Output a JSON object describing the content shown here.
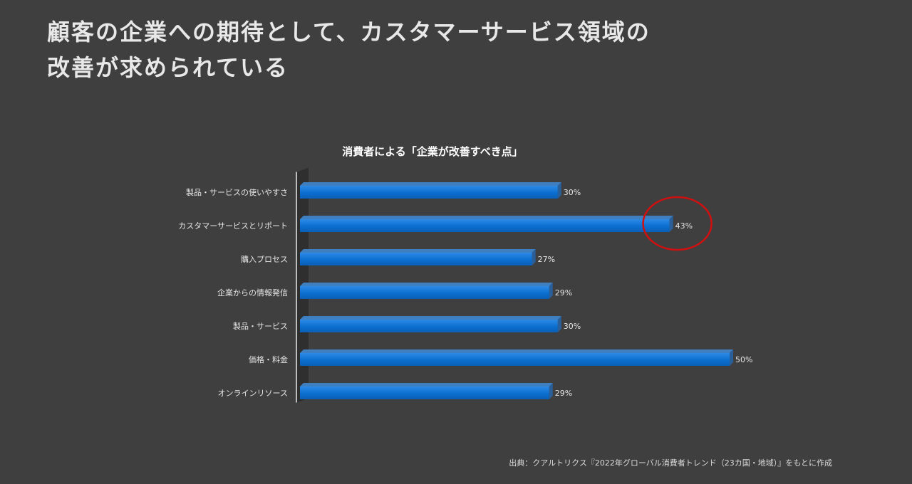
{
  "page": {
    "headline_line1": "顧客の企業への期待として、カスタマーサービス領域の",
    "headline_line2": "改善が求められている",
    "source": "出典：クアルトリクス『2022年グローバル消費者トレンド（23カ国・地域）』をもとに作成"
  },
  "chart_data": {
    "type": "bar",
    "orientation": "horizontal",
    "title": "消費者による「企業が改善すべき点」",
    "categories": [
      "製品・サービスの使いやすさ",
      "カスタマーサービスとリポート",
      "購入プロセス",
      "企業からの情報発信",
      "製品・サービス",
      "価格・料金",
      "オンラインリソース"
    ],
    "values": [
      30,
      43,
      27,
      29,
      30,
      50,
      29
    ],
    "value_labels": [
      "30%",
      "43%",
      "27%",
      "29%",
      "30%",
      "50%",
      "29%"
    ],
    "unit": "%",
    "xlim": [
      0,
      50
    ],
    "grid": false,
    "legend": "none",
    "highlight_index": 1,
    "colors": {
      "bar": "#0b6fd0",
      "bar_top": "#3f7fc0",
      "bar_side": "#2a5f9a",
      "highlight_circle": "#d01010",
      "axis": "#e6e6e6"
    }
  }
}
